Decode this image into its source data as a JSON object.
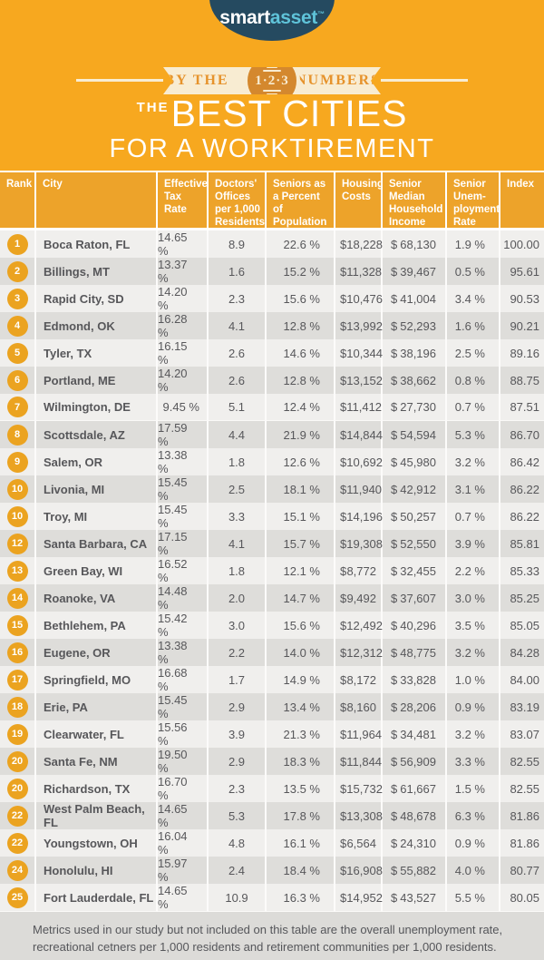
{
  "brand": {
    "logo_smart": "smart",
    "logo_asset": "asset",
    "logo_tm": "™"
  },
  "banner": {
    "left": "BY THE",
    "badge": "1·2·3",
    "right": "NUMBERS"
  },
  "title": {
    "the": "THE",
    "line1": "BEST CITIES",
    "line2": "FOR A WORKTIREMENT"
  },
  "chart_data": {
    "type": "table",
    "title": "The Best Cities for a Worktirement",
    "currency": "$",
    "columns": [
      "Rank",
      "City",
      "Effective Tax Rate",
      "Doctors' Offices per 1,000 Residents",
      "Seniors as a Percent of Population",
      "Housing Costs",
      "Senior Median Household Income",
      "Senior Unem-ployment Rate",
      "Index"
    ],
    "rows": [
      {
        "rank": "1",
        "city": "Boca Raton, FL",
        "tax": "14.65 %",
        "doctors": "8.9",
        "seniors": "22.6 %",
        "housing": "18,228",
        "income": "68,130",
        "unemp": "1.9 %",
        "index": "100.00"
      },
      {
        "rank": "2",
        "city": "Billings, MT",
        "tax": "13.37 %",
        "doctors": "1.6",
        "seniors": "15.2 %",
        "housing": "11,328",
        "income": "39,467",
        "unemp": "0.5 %",
        "index": "95.61"
      },
      {
        "rank": "3",
        "city": "Rapid City, SD",
        "tax": "14.20 %",
        "doctors": "2.3",
        "seniors": "15.6 %",
        "housing": "10,476",
        "income": "41,004",
        "unemp": "3.4 %",
        "index": "90.53"
      },
      {
        "rank": "4",
        "city": "Edmond, OK",
        "tax": "16.28 %",
        "doctors": "4.1",
        "seniors": "12.8 %",
        "housing": "13,992",
        "income": "52,293",
        "unemp": "1.6 %",
        "index": "90.21"
      },
      {
        "rank": "5",
        "city": "Tyler, TX",
        "tax": "16.15 %",
        "doctors": "2.6",
        "seniors": "14.6 %",
        "housing": "10,344",
        "income": "38,196",
        "unemp": "2.5 %",
        "index": "89.16"
      },
      {
        "rank": "6",
        "city": "Portland, ME",
        "tax": "14.20 %",
        "doctors": "2.6",
        "seniors": "12.8 %",
        "housing": "13,152",
        "income": "38,662",
        "unemp": "0.8 %",
        "index": "88.75"
      },
      {
        "rank": "7",
        "city": "Wilmington, DE",
        "tax": "9.45 %",
        "doctors": "5.1",
        "seniors": "12.4 %",
        "housing": "11,412",
        "income": "27,730",
        "unemp": "0.7 %",
        "index": "87.51"
      },
      {
        "rank": "8",
        "city": "Scottsdale, AZ",
        "tax": "17.59 %",
        "doctors": "4.4",
        "seniors": "21.9 %",
        "housing": "14,844",
        "income": "54,594",
        "unemp": "5.3 %",
        "index": "86.70"
      },
      {
        "rank": "9",
        "city": "Salem, OR",
        "tax": "13.38 %",
        "doctors": "1.8",
        "seniors": "12.6 %",
        "housing": "10,692",
        "income": "45,980",
        "unemp": "3.2 %",
        "index": "86.42"
      },
      {
        "rank": "10",
        "city": "Livonia, MI",
        "tax": "15.45 %",
        "doctors": "2.5",
        "seniors": "18.1 %",
        "housing": "11,940",
        "income": "42,912",
        "unemp": "3.1 %",
        "index": "86.22"
      },
      {
        "rank": "10",
        "city": "Troy, MI",
        "tax": "15.45 %",
        "doctors": "3.3",
        "seniors": "15.1 %",
        "housing": "14,196",
        "income": "50,257",
        "unemp": "0.7 %",
        "index": "86.22"
      },
      {
        "rank": "12",
        "city": "Santa Barbara, CA",
        "tax": "17.15 %",
        "doctors": "4.1",
        "seniors": "15.7 %",
        "housing": "19,308",
        "income": "52,550",
        "unemp": "3.9 %",
        "index": "85.81"
      },
      {
        "rank": "13",
        "city": "Green Bay, WI",
        "tax": "16.52 %",
        "doctors": "1.8",
        "seniors": "12.1 %",
        "housing": "8,772",
        "income": "32,455",
        "unemp": "2.2 %",
        "index": "85.33"
      },
      {
        "rank": "14",
        "city": "Roanoke, VA",
        "tax": "14.48 %",
        "doctors": "2.0",
        "seniors": "14.7 %",
        "housing": "9,492",
        "income": "37,607",
        "unemp": "3.0 %",
        "index": "85.25"
      },
      {
        "rank": "15",
        "city": "Bethlehem, PA",
        "tax": "15.42 %",
        "doctors": "3.0",
        "seniors": "15.6 %",
        "housing": "12,492",
        "income": "40,296",
        "unemp": "3.5 %",
        "index": "85.05"
      },
      {
        "rank": "16",
        "city": "Eugene, OR",
        "tax": "13.38 %",
        "doctors": "2.2",
        "seniors": "14.0 %",
        "housing": "12,312",
        "income": "48,775",
        "unemp": "3.2 %",
        "index": "84.28"
      },
      {
        "rank": "17",
        "city": "Springfield, MO",
        "tax": "16.68 %",
        "doctors": "1.7",
        "seniors": "14.9 %",
        "housing": "8,172",
        "income": "33,828",
        "unemp": "1.0 %",
        "index": "84.00"
      },
      {
        "rank": "18",
        "city": "Erie, PA",
        "tax": "15.45 %",
        "doctors": "2.9",
        "seniors": "13.4 %",
        "housing": "8,160",
        "income": "28,206",
        "unemp": "0.9 %",
        "index": "83.19"
      },
      {
        "rank": "19",
        "city": "Clearwater, FL",
        "tax": "15.56 %",
        "doctors": "3.9",
        "seniors": "21.3 %",
        "housing": "11,964",
        "income": "34,481",
        "unemp": "3.2 %",
        "index": "83.07"
      },
      {
        "rank": "20",
        "city": "Santa Fe, NM",
        "tax": "19.50 %",
        "doctors": "2.9",
        "seniors": "18.3 %",
        "housing": "11,844",
        "income": "56,909",
        "unemp": "3.3 %",
        "index": "82.55"
      },
      {
        "rank": "20",
        "city": "Richardson, TX",
        "tax": "16.70 %",
        "doctors": "2.3",
        "seniors": "13.5 %",
        "housing": "15,732",
        "income": "61,667",
        "unemp": "1.5 %",
        "index": "82.55"
      },
      {
        "rank": "22",
        "city": "West Palm Beach, FL",
        "tax": "14.65 %",
        "doctors": "5.3",
        "seniors": "17.8 %",
        "housing": "13,308",
        "income": "48,678",
        "unemp": "6.3 %",
        "index": "81.86"
      },
      {
        "rank": "22",
        "city": "Youngstown, OH",
        "tax": "16.04 %",
        "doctors": "4.8",
        "seniors": "16.1 %",
        "housing": "6,564",
        "income": "24,310",
        "unemp": "0.9 %",
        "index": "81.86"
      },
      {
        "rank": "24",
        "city": "Honolulu, HI",
        "tax": "15.97 %",
        "doctors": "2.4",
        "seniors": "18.4 %",
        "housing": "16,908",
        "income": "55,882",
        "unemp": "4.0 %",
        "index": "80.77"
      },
      {
        "rank": "25",
        "city": "Fort Lauderdale, FL",
        "tax": "14.65 %",
        "doctors": "10.9",
        "seniors": "16.3 %",
        "housing": "14,952",
        "income": "43,527",
        "unemp": "5.5 %",
        "index": "80.05"
      }
    ]
  },
  "footer": {
    "note": "Metrics used in our study but not included on this table are the overall unemployment rate, recreational cetners per 1,000 residents and retirement communities per 1,000 residents."
  },
  "colors": {
    "background": "#F7A81F",
    "header_orange": "#EDA32A",
    "rank_circle": "#EBA320",
    "navy": "#254A60",
    "teal": "#5FC3D9",
    "cream": "#F8ECD2",
    "badge_fill": "#D4882E",
    "row_light": "#F0EFED",
    "row_dark": "#DEDDDA",
    "footer_bg": "#DCDBD8",
    "text_gray": "#57575A"
  }
}
